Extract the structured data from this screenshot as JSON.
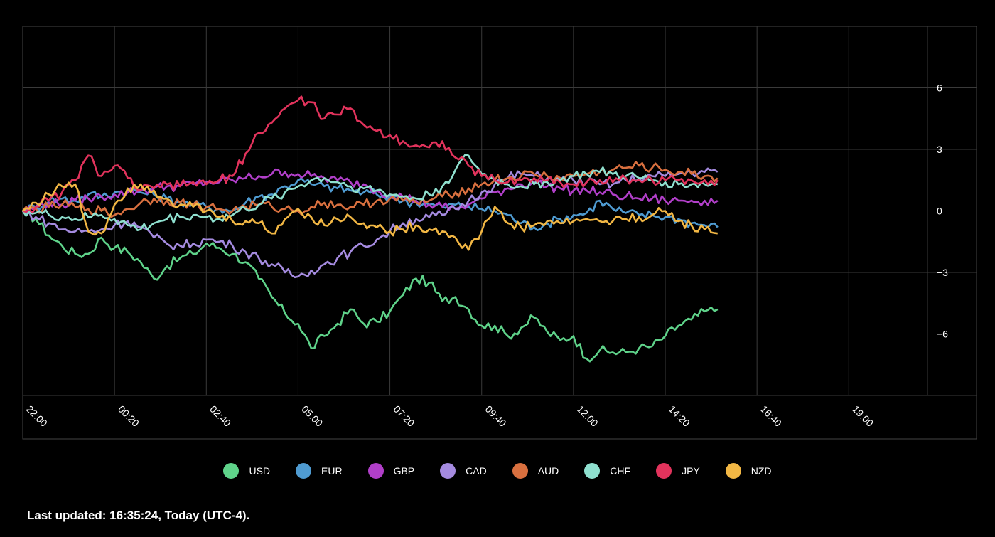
{
  "chart_data": {
    "type": "line",
    "title": "",
    "xlabel": "",
    "ylabel": "",
    "x_ticks": [
      "22:00",
      "00:20",
      "02:40",
      "05:00",
      "07:20",
      "09:40",
      "12:00",
      "14:20",
      "16:40",
      "19:00"
    ],
    "x_range": [
      0,
      1380
    ],
    "y_ticks": [
      6,
      3,
      0,
      -3,
      -6
    ],
    "ylim": [
      -9,
      9
    ],
    "grid": true,
    "legend_position": "bottom",
    "sample_step_minutes": 20,
    "series": [
      {
        "name": "USD",
        "color": "#5fd38a",
        "values": [
          0,
          -0.4,
          -1.2,
          -1.7,
          -2.1,
          -2.1,
          -1.3,
          -1.8,
          -2.0,
          -2.5,
          -3.3,
          -2.7,
          -2.3,
          -2.1,
          -1.6,
          -1.8,
          -2.1,
          -2.5,
          -3.3,
          -4.2,
          -5.0,
          -5.5,
          -6.7,
          -6.1,
          -5.5,
          -4.8,
          -5.5,
          -5.4,
          -4.9,
          -4.1,
          -3.3,
          -3.5,
          -4.4,
          -4.2,
          -4.8,
          -5.6,
          -5.6,
          -6.1,
          -5.7,
          -5.2,
          -5.9,
          -6.3,
          -6.1,
          -7.2,
          -6.8,
          -6.9,
          -6.9,
          -6.7,
          -6.6,
          -6.1,
          -5.6,
          -5.3,
          -4.9,
          -4.8
        ]
      },
      {
        "name": "EUR",
        "color": "#4f9bd1",
        "values": [
          0,
          0.2,
          0.5,
          0.6,
          0.5,
          0.8,
          0.7,
          0.9,
          1.0,
          0.9,
          0.8,
          0.6,
          0.4,
          0.3,
          0.2,
          0.1,
          0,
          0.4,
          0.7,
          0.8,
          1.2,
          1.5,
          1.3,
          1.2,
          1.1,
          1.0,
          0.9,
          0.8,
          0.7,
          0.5,
          0.4,
          0.3,
          0.2,
          0.3,
          0.2,
          0.1,
          0.0,
          -0.2,
          -0.6,
          -0.8,
          -0.6,
          -0.4,
          -0.2,
          -0.1,
          0.5,
          0.1,
          -0.1,
          -0.2,
          -0.2,
          -0.3,
          -0.4,
          -0.6,
          -0.7,
          -0.8
        ]
      },
      {
        "name": "GBP",
        "color": "#b13fc9",
        "values": [
          0,
          0.2,
          0.4,
          0.3,
          0.5,
          0.6,
          0.7,
          0.8,
          0.9,
          1.0,
          1.1,
          1.2,
          1.2,
          1.3,
          1.4,
          1.4,
          1.5,
          1.6,
          1.7,
          1.8,
          1.9,
          1.8,
          1.7,
          1.6,
          1.5,
          1.4,
          1.3,
          1.0,
          0.8,
          0.7,
          0.5,
          0.3,
          0.2,
          0.1,
          0.3,
          0.6,
          0.9,
          1.1,
          1.3,
          1.4,
          1.2,
          1.1,
          1.0,
          1.0,
          0.9,
          0.8,
          0.7,
          0.6,
          0.6,
          0.5,
          0.5,
          0.5,
          0.5,
          0.5
        ]
      },
      {
        "name": "CAD",
        "color": "#a58be0",
        "values": [
          0,
          -0.3,
          -0.6,
          -0.9,
          -1.0,
          -1.0,
          -0.9,
          -0.7,
          -0.5,
          -0.8,
          -1.3,
          -1.6,
          -1.7,
          -1.6,
          -1.4,
          -1.5,
          -1.7,
          -2.0,
          -2.3,
          -2.6,
          -3.0,
          -3.2,
          -2.9,
          -2.6,
          -2.3,
          -2.0,
          -1.7,
          -1.4,
          -1.0,
          -0.6,
          -0.4,
          -0.3,
          -0.2,
          0.1,
          0.5,
          0.9,
          1.3,
          1.6,
          1.8,
          1.7,
          1.6,
          1.5,
          1.5,
          1.4,
          1.3,
          1.3,
          1.5,
          1.6,
          1.7,
          1.7,
          1.8,
          1.9,
          1.9,
          1.9
        ]
      },
      {
        "name": "AUD",
        "color": "#d9703f",
        "values": [
          0,
          0.1,
          0.2,
          0.3,
          0.2,
          0.1,
          0.0,
          -0.2,
          0.1,
          0.4,
          0.6,
          0.5,
          0.4,
          0.3,
          0.2,
          0.1,
          0.0,
          0.2,
          0.3,
          0.2,
          0.1,
          0.0,
          0.2,
          0.4,
          0.3,
          0.2,
          0.3,
          0.5,
          0.6,
          0.5,
          0.4,
          0.5,
          0.7,
          0.9,
          1.1,
          1.3,
          1.5,
          1.6,
          1.7,
          1.8,
          1.7,
          1.6,
          1.7,
          1.8,
          1.9,
          2.0,
          2.1,
          2.2,
          2.1,
          2.0,
          1.9,
          1.8,
          1.7,
          1.6
        ]
      },
      {
        "name": "CHF",
        "color": "#8fe0cf",
        "values": [
          0,
          -0.1,
          -0.2,
          -0.3,
          -0.4,
          -0.3,
          -0.2,
          -0.4,
          -0.7,
          -0.9,
          -0.6,
          -0.4,
          -0.3,
          -0.2,
          -0.3,
          -0.4,
          -0.2,
          0.1,
          0.3,
          0.6,
          0.9,
          1.2,
          1.5,
          1.6,
          1.4,
          1.2,
          1.1,
          1.0,
          0.8,
          0.7,
          0.6,
          0.8,
          1.2,
          2.0,
          2.7,
          1.8,
          1.5,
          1.3,
          1.2,
          1.3,
          1.4,
          1.5,
          1.7,
          1.8,
          1.9,
          1.8,
          1.7,
          1.6,
          1.5,
          1.4,
          1.3,
          1.3,
          1.3,
          1.3
        ]
      },
      {
        "name": "JPY",
        "color": "#e2335c",
        "values": [
          0,
          0.2,
          0.5,
          0.9,
          1.5,
          2.7,
          1.7,
          2.2,
          1.6,
          1.0,
          1.1,
          1.3,
          1.2,
          1.4,
          1.3,
          1.5,
          1.7,
          2.8,
          3.8,
          4.3,
          5.0,
          5.4,
          5.3,
          4.5,
          4.7,
          5.0,
          4.2,
          3.9,
          3.7,
          3.4,
          3.2,
          3.1,
          3.4,
          2.6,
          2.2,
          1.7,
          1.5,
          1.4,
          1.5,
          1.6,
          1.5,
          1.4,
          1.3,
          1.4,
          1.5,
          1.4,
          1.6,
          1.5,
          1.5,
          1.5,
          1.5,
          1.5,
          1.5,
          1.5
        ]
      },
      {
        "name": "NZD",
        "color": "#f2b744",
        "values": [
          0,
          0.4,
          0.8,
          1.2,
          1.3,
          -1.0,
          -1.1,
          0.3,
          1.1,
          1.3,
          1.0,
          0.6,
          0.3,
          0.2,
          0.0,
          -0.3,
          -0.5,
          -0.5,
          -0.6,
          -1.1,
          -0.4,
          0.1,
          -0.3,
          -0.7,
          -0.4,
          -0.3,
          -0.6,
          -0.8,
          -1.0,
          -0.9,
          -0.7,
          -0.9,
          -1.0,
          -1.3,
          -1.9,
          -1.0,
          0.2,
          -0.6,
          -0.8,
          -0.7,
          -0.5,
          -0.6,
          -0.5,
          -0.4,
          -0.5,
          -0.5,
          -0.4,
          -0.3,
          -0.2,
          0.0,
          -0.5,
          -0.7,
          -0.9,
          -1.1
        ]
      }
    ]
  },
  "footer": {
    "last_updated": "Last updated: 16:35:24, Today (UTC-4)."
  }
}
